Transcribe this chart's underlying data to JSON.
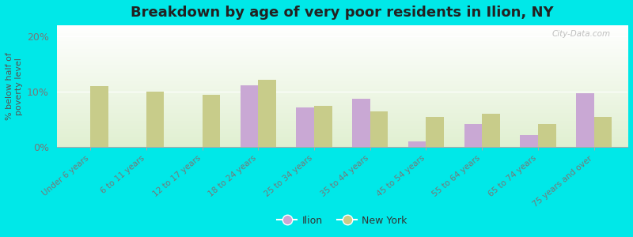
{
  "title": "Breakdown by age of very poor residents in Ilion, NY",
  "ylabel": "% below half of\npoverty level",
  "categories": [
    "Under 6 years",
    "6 to 11 years",
    "12 to 17 years",
    "18 to 24 years",
    "25 to 34 years",
    "35 to 44 years",
    "45 to 54 years",
    "55 to 64 years",
    "65 to 74 years",
    "75 years and over"
  ],
  "ilion_values": [
    0,
    0,
    0,
    11.2,
    7.2,
    8.7,
    1.0,
    4.2,
    2.2,
    9.7
  ],
  "newyork_values": [
    11.0,
    10.0,
    9.5,
    12.2,
    7.5,
    6.5,
    5.5,
    6.0,
    4.2,
    5.5
  ],
  "ilion_color": "#c9a8d4",
  "newyork_color": "#c8cc8a",
  "background_color": "#00e8e8",
  "plot_bg_color": "#e8f0d0",
  "ylim": [
    0,
    22
  ],
  "yticks": [
    0,
    10,
    20
  ],
  "ytick_labels": [
    "0%",
    "10%",
    "20%"
  ],
  "bar_width": 0.32,
  "title_fontsize": 13,
  "legend_labels": [
    "Ilion",
    "New York"
  ],
  "watermark": "City-Data.com",
  "label_color": "#555555",
  "tick_label_color": "#777777"
}
